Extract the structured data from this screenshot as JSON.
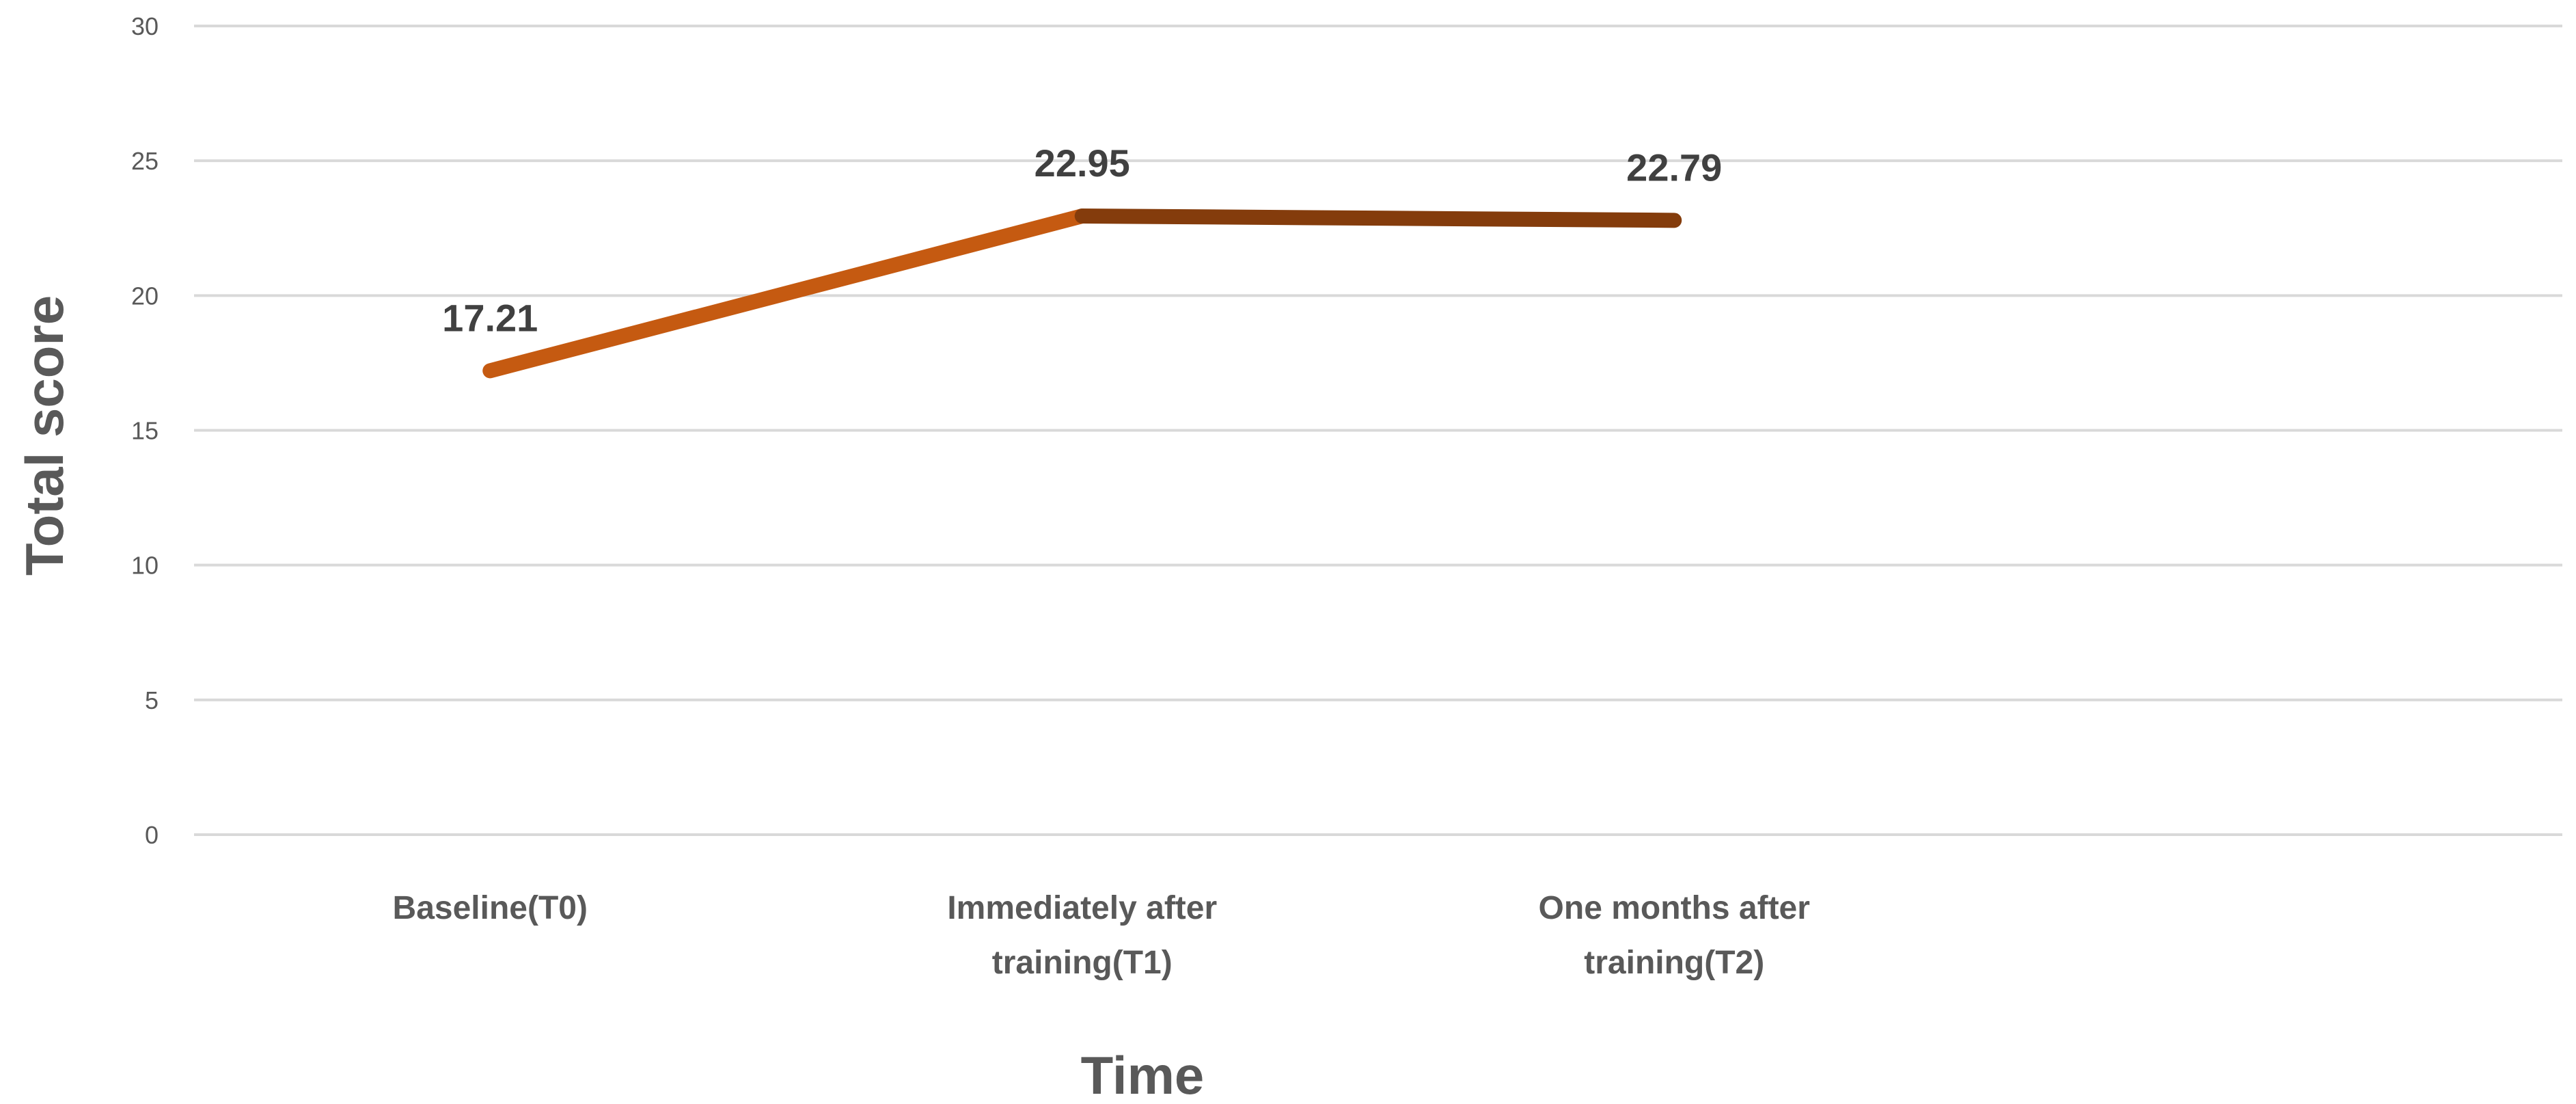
{
  "chart_data": {
    "type": "line",
    "title": "",
    "xlabel": "Time",
    "ylabel": "Total score",
    "categories": [
      [
        "Baseline(T0)"
      ],
      [
        "Immediately after",
        "training(T1)"
      ],
      [
        "One months after",
        "training(T2)"
      ]
    ],
    "values": [
      17.21,
      22.95,
      22.79
    ],
    "data_labels": [
      "17.21",
      "22.95",
      "22.79"
    ],
    "yticks": [
      "0",
      "5",
      "10",
      "15",
      "20",
      "25",
      "30"
    ],
    "ylim": [
      0,
      30
    ],
    "grid": true,
    "legend": "none",
    "segment_colors": [
      "#C55A11",
      "#843C0C"
    ],
    "colors": {
      "gridline": "#D9D9D9",
      "text": "#595959",
      "data_label": "#404040"
    }
  }
}
